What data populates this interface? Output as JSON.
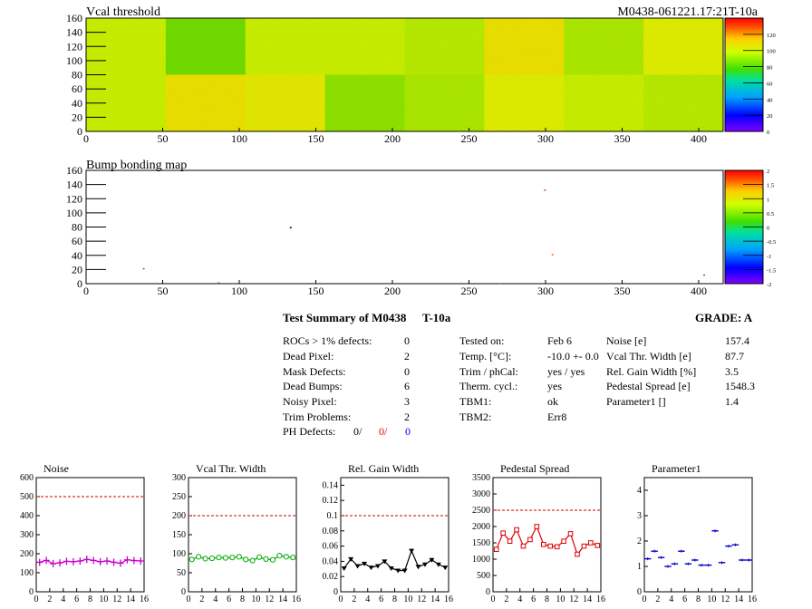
{
  "header": {
    "title_left": "Vcal threshold",
    "title_right": "M0438-061221.17:21T-10a"
  },
  "bump_title": "Bump bonding map",
  "axes": {
    "map_x_ticks": [
      "0",
      "50",
      "100",
      "150",
      "200",
      "250",
      "300",
      "350",
      "400"
    ],
    "map_y_ticks": [
      "0",
      "20",
      "40",
      "60",
      "80",
      "100",
      "120",
      "140",
      "160"
    ],
    "map_x_max": 416,
    "map_y_max": 160
  },
  "vcal_colorbar": {
    "ticks": [
      "0",
      "20",
      "40",
      "60",
      "80",
      "100",
      "120"
    ],
    "max": 140
  },
  "bump_colorbar": {
    "ticks": [
      "-2",
      "-1.5",
      "-1",
      "-0.5",
      "0",
      "0.5",
      "1",
      "1.5",
      "2"
    ]
  },
  "bump_dots": [
    {
      "x": 37,
      "y": 22,
      "color": "#00b000"
    },
    {
      "x": 86,
      "y": 2,
      "color": "#00b000"
    },
    {
      "x": 133,
      "y": 80,
      "color": "#000000"
    },
    {
      "x": 270,
      "y": 1,
      "color": "#00b000"
    },
    {
      "x": 299,
      "y": 133,
      "color": "#cc4444"
    },
    {
      "x": 304,
      "y": 42,
      "color": "#ff6600"
    },
    {
      "x": 403,
      "y": 13,
      "color": "#00b000"
    }
  ],
  "summary": {
    "title": "Test Summary of M0438",
    "test_id": "T-10a",
    "grade": "GRADE:  A",
    "left": [
      {
        "label": "ROCs > 1% defects:",
        "value": "0"
      },
      {
        "label": "Dead Pixel:",
        "value": "2"
      },
      {
        "label": "Mask Defects:",
        "value": "0"
      },
      {
        "label": "Dead Bumps:",
        "value": "6"
      },
      {
        "label": "Noisy Pixel:",
        "value": "3"
      },
      {
        "label": "Trim Problems:",
        "value": "2"
      }
    ],
    "ph_label": "PH Defects:",
    "ph_values": [
      "0/",
      "0/",
      "0"
    ],
    "middle": [
      {
        "label": "Tested on:",
        "value": "Feb 6"
      },
      {
        "label": "Temp. [°C]:",
        "value": "-10.0 +- 0.0"
      },
      {
        "label": "Trim / phCal:",
        "value": "yes / yes"
      },
      {
        "label": "Therm. cycl.:",
        "value": "yes"
      },
      {
        "label": "TBM1:",
        "value": "ok"
      },
      {
        "label": "TBM2:",
        "value": "Err8"
      }
    ],
    "right": [
      {
        "label": "Noise [e]",
        "value": "157.4"
      },
      {
        "label": "Vcal Thr. Width [e]",
        "value": "87.7"
      },
      {
        "label": "Rel. Gain Width [%]",
        "value": "3.5"
      },
      {
        "label": "Pedestal Spread [e]",
        "value": "1548.3"
      },
      {
        "label": "Parameter1 []",
        "value": "1.4"
      }
    ]
  },
  "chart_data": [
    {
      "type": "heatmap",
      "title": "Vcal threshold",
      "xlim": [
        0,
        416
      ],
      "ylim": [
        0,
        160
      ],
      "roc_grid": {
        "cols": 8,
        "rows": 2
      },
      "roc_mean_values": {
        "top": [
          95,
          80,
          95,
          95,
          92,
          105,
          90,
          100
        ],
        "bottom": [
          95,
          105,
          102,
          85,
          90,
          100,
          95,
          92
        ]
      },
      "zlim": [
        0,
        140
      ]
    },
    {
      "type": "scatter",
      "title": "Bump bonding map",
      "xlim": [
        0,
        416
      ],
      "ylim": [
        0,
        160
      ]
    },
    {
      "type": "line",
      "title": "Noise",
      "x": [
        0,
        1,
        2,
        3,
        4,
        5,
        6,
        7,
        8,
        9,
        10,
        11,
        12,
        13,
        14,
        15
      ],
      "values": [
        155,
        165,
        148,
        152,
        160,
        158,
        162,
        170,
        165,
        158,
        162,
        155,
        150,
        168,
        164,
        162
      ],
      "ylim": [
        0,
        600
      ],
      "ref": 500,
      "yticks": [
        "0",
        "100",
        "200",
        "300",
        "400",
        "500",
        "600"
      ],
      "color": "#cc00cc",
      "marker": "cross"
    },
    {
      "type": "line",
      "title": "Vcal Thr. Width",
      "x": [
        0,
        1,
        2,
        3,
        4,
        5,
        6,
        7,
        8,
        9,
        10,
        11,
        12,
        13,
        14,
        15
      ],
      "values": [
        85,
        92,
        87,
        88,
        90,
        89,
        90,
        92,
        85,
        82,
        91,
        86,
        84,
        95,
        92,
        90
      ],
      "ylim": [
        0,
        300
      ],
      "ref": 200,
      "yticks": [
        "0",
        "50",
        "100",
        "150",
        "200",
        "250",
        "300"
      ],
      "color": "#00aa00",
      "marker": "circle"
    },
    {
      "type": "line",
      "title": "Rel. Gain Width",
      "x": [
        0,
        1,
        2,
        3,
        4,
        5,
        6,
        7,
        8,
        9,
        10,
        11,
        12,
        13,
        14,
        15
      ],
      "values": [
        0.031,
        0.043,
        0.034,
        0.037,
        0.032,
        0.034,
        0.04,
        0.031,
        0.028,
        0.028,
        0.054,
        0.033,
        0.036,
        0.042,
        0.036,
        0.032
      ],
      "ylim": [
        0,
        0.15
      ],
      "ref": 0.1,
      "yticks": [
        "0",
        "0.02",
        "0.04",
        "0.06",
        "0.08",
        "0.1",
        "0.12",
        "0.14"
      ],
      "color": "#000000",
      "marker": "triangle"
    },
    {
      "type": "line",
      "title": "Pedestal Spread",
      "x": [
        0,
        1,
        2,
        3,
        4,
        5,
        6,
        7,
        8,
        9,
        10,
        11,
        12,
        13,
        14,
        15
      ],
      "values": [
        1300,
        1800,
        1550,
        1900,
        1400,
        1600,
        2000,
        1450,
        1400,
        1380,
        1550,
        1780,
        1150,
        1400,
        1500,
        1420
      ],
      "ylim": [
        0,
        3500
      ],
      "ref": 2500,
      "yticks": [
        "0",
        "500",
        "1000",
        "1500",
        "2000",
        "2500",
        "3000",
        "3500"
      ],
      "color": "#dd0000",
      "marker": "square"
    },
    {
      "type": "scatter",
      "title": "Parameter1",
      "x": [
        0,
        1,
        2,
        3,
        4,
        5,
        6,
        7,
        8,
        9,
        10,
        11,
        12,
        13,
        14,
        15
      ],
      "values": [
        1.3,
        1.6,
        1.35,
        1.0,
        1.1,
        1.6,
        1.1,
        1.25,
        1.05,
        1.05,
        2.4,
        1.15,
        1.8,
        1.85,
        1.25,
        1.25
      ],
      "ylim": [
        0,
        4.5
      ],
      "yticks": [
        "0",
        "1",
        "2",
        "3",
        "4"
      ],
      "color": "#0000cc",
      "marker": "hbar"
    }
  ],
  "small_x_ticks": [
    "0",
    "2",
    "4",
    "6",
    "8",
    "10",
    "12",
    "14",
    "16"
  ],
  "colors": {
    "ref_line": "#cc0000"
  }
}
